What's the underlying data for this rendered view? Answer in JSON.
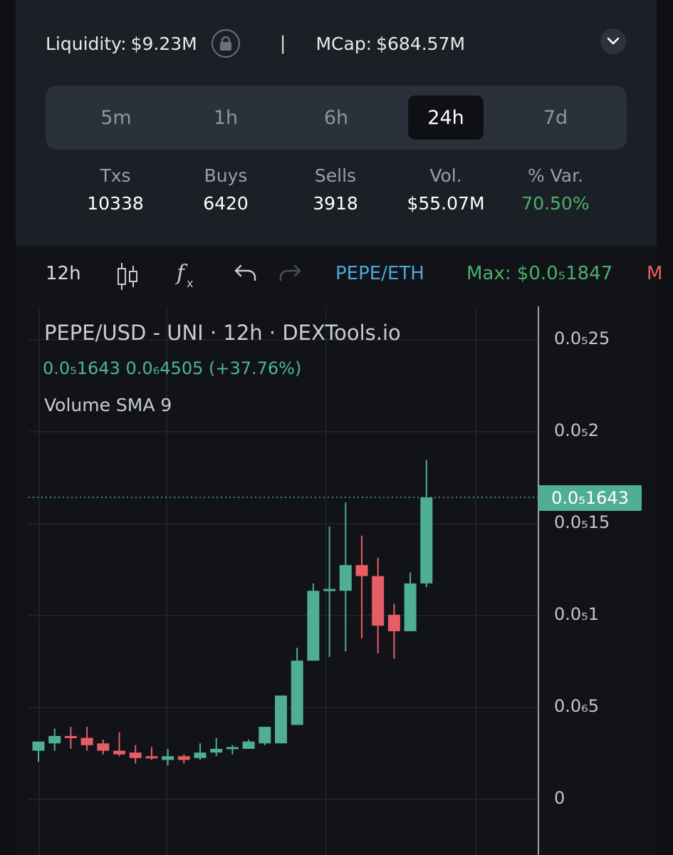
{
  "header": {
    "liquidity_label": "Liquidity:",
    "liquidity_value": "$9.23M",
    "separator": "|",
    "mcap_label": "MCap:",
    "mcap_value": "$684.57M"
  },
  "timeframes": [
    "5m",
    "1h",
    "6h",
    "24h",
    "7d"
  ],
  "active_timeframe": "24h",
  "metrics": [
    {
      "label": "Txs",
      "value": "10338"
    },
    {
      "label": "Buys",
      "value": "6420"
    },
    {
      "label": "Sells",
      "value": "3918"
    },
    {
      "label": "Vol.",
      "value": "$55.07M"
    },
    {
      "label": "% Var.",
      "value": "70.50%"
    }
  ],
  "toolbar": {
    "interval": "12h",
    "pair": "PEPE/ETH",
    "max_label": "Max:",
    "max_value": "$0.0₅1847",
    "cut_text": "M"
  },
  "chart_legend": {
    "title": "PEPE/USD - UNI · 12h · DEXTools.io",
    "ohlc": "0.0₅1643  0.0₆4505 (+37.76%)",
    "indicator": "Volume SMA 9"
  },
  "current_price_label": "0.0₅1643",
  "colors": {
    "up": "#4fae95",
    "down": "#e65d63",
    "accent_blue": "#4ca8d6",
    "accent_green": "#4caf6b"
  },
  "chart_data": {
    "type": "candlestick",
    "title": "PEPE/USD - UNI · 12h · DEXTools.io",
    "y_tick_labels": [
      "0.0₅25",
      "0.0₅2",
      "0.0₅15",
      "0.0₅1",
      "0.0₆5",
      "0"
    ],
    "y_ticks_value": [
      2.5e-05,
      2e-05,
      1.5e-05,
      1e-05,
      5e-06,
      0
    ],
    "ylim": [
      0,
      2.55e-05
    ],
    "current_price": 1.643e-05,
    "candles": [
      {
        "open": 2.65e-06,
        "high": 3.15e-06,
        "low": 2.05e-06,
        "close": 3.15e-06
      },
      {
        "open": 3.05e-06,
        "high": 3.85e-06,
        "low": 2.65e-06,
        "close": 3.45e-06
      },
      {
        "open": 3.45e-06,
        "high": 3.95e-06,
        "low": 2.75e-06,
        "close": 3.35e-06
      },
      {
        "open": 3.35e-06,
        "high": 3.95e-06,
        "low": 2.65e-06,
        "close": 2.95e-06
      },
      {
        "open": 3.05e-06,
        "high": 3.25e-06,
        "low": 2.45e-06,
        "close": 2.65e-06
      },
      {
        "open": 2.65e-06,
        "high": 3.65e-06,
        "low": 2.35e-06,
        "close": 2.45e-06
      },
      {
        "open": 2.55e-06,
        "high": 2.95e-06,
        "low": 1.95e-06,
        "close": 2.25e-06
      },
      {
        "open": 2.35e-06,
        "high": 2.85e-06,
        "low": 2.15e-06,
        "close": 2.25e-06
      },
      {
        "open": 2.15e-06,
        "high": 2.75e-06,
        "low": 1.85e-06,
        "close": 2.35e-06
      },
      {
        "open": 2.35e-06,
        "high": 2.45e-06,
        "low": 1.95e-06,
        "close": 2.15e-06
      },
      {
        "open": 2.25e-06,
        "high": 3.05e-06,
        "low": 2.15e-06,
        "close": 2.55e-06
      },
      {
        "open": 2.55e-06,
        "high": 3.35e-06,
        "low": 2.35e-06,
        "close": 2.75e-06
      },
      {
        "open": 2.75e-06,
        "high": 2.95e-06,
        "low": 2.45e-06,
        "close": 2.85e-06
      },
      {
        "open": 2.75e-06,
        "high": 3.25e-06,
        "low": 2.75e-06,
        "close": 3.15e-06
      },
      {
        "open": 3.05e-06,
        "high": 3.95e-06,
        "low": 2.95e-06,
        "close": 3.95e-06
      },
      {
        "open": 3.05e-06,
        "high": 5.65e-06,
        "low": 3.05e-06,
        "close": 5.65e-06
      },
      {
        "open": 4.05e-06,
        "high": 8.25e-06,
        "low": 4.05e-06,
        "close": 7.55e-06
      },
      {
        "open": 7.55e-06,
        "high": 1.175e-05,
        "low": 7.55e-06,
        "close": 1.135e-05
      },
      {
        "open": 1.135e-05,
        "high": 1.485e-05,
        "low": 7.75e-06,
        "close": 1.145e-05
      },
      {
        "open": 1.135e-05,
        "high": 1.615e-05,
        "low": 8.05e-06,
        "close": 1.275e-05
      },
      {
        "open": 1.275e-05,
        "high": 1.435e-05,
        "low": 8.75e-06,
        "close": 1.215e-05
      },
      {
        "open": 1.215e-05,
        "high": 1.315e-05,
        "low": 7.95e-06,
        "close": 9.45e-06
      },
      {
        "open": 1.005e-05,
        "high": 1.065e-05,
        "low": 7.65e-06,
        "close": 9.15e-06
      },
      {
        "open": 9.15e-06,
        "high": 1.235e-05,
        "low": 9.15e-06,
        "close": 1.175e-05
      },
      {
        "open": 1.175e-05,
        "high": 1.847e-05,
        "low": 1.155e-05,
        "close": 1.643e-05
      }
    ]
  }
}
